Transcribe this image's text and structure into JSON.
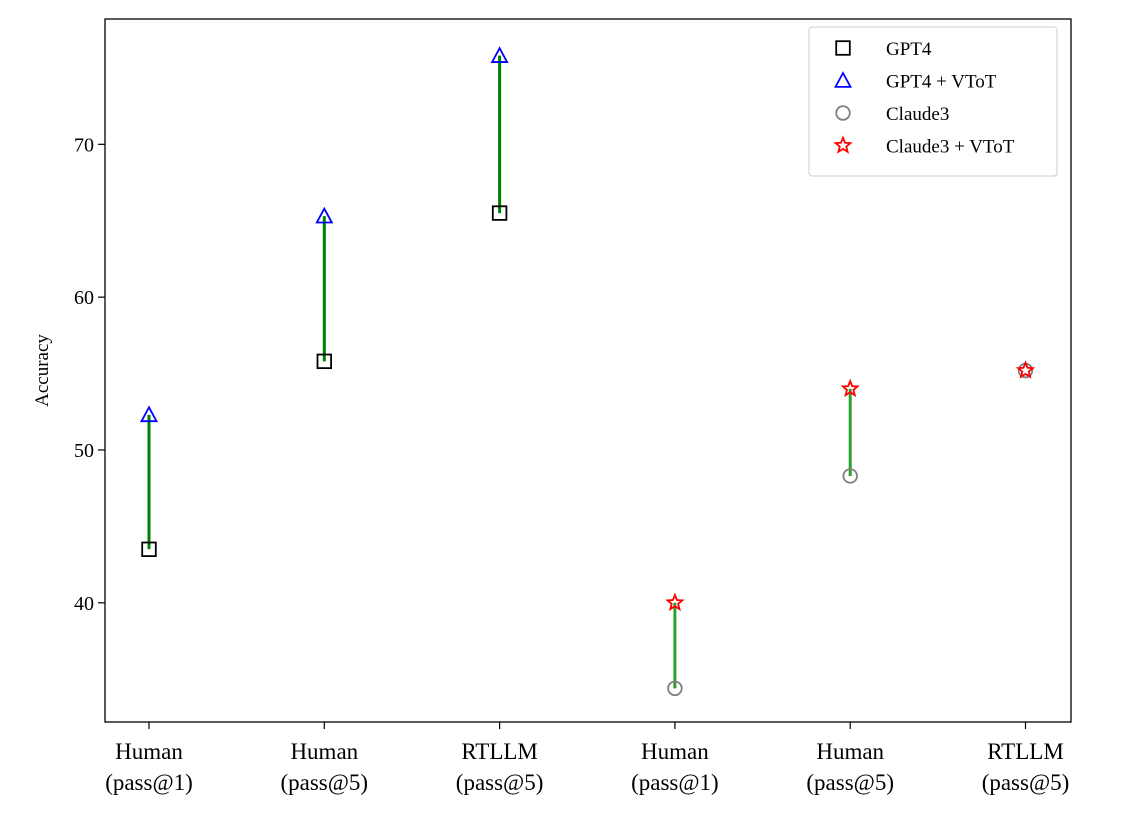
{
  "chart_data": {
    "type": "scatter",
    "ylabel": "Accuracy",
    "xlabel": "",
    "ylim": [
      32.2,
      78.2
    ],
    "yticks": [
      40,
      50,
      60,
      70
    ],
    "categories": [
      {
        "line1": "Human",
        "line2": "(pass@1)"
      },
      {
        "line1": "Human",
        "line2": "(pass@5)"
      },
      {
        "line1": "RTLLM",
        "line2": "(pass@5)"
      },
      {
        "line1": "Human",
        "line2": "(pass@1)"
      },
      {
        "line1": "Human",
        "line2": "(pass@5)"
      },
      {
        "line1": "RTLLM",
        "line2": "(pass@5)"
      }
    ],
    "series": [
      {
        "name": "GPT4",
        "marker": "square",
        "color": "#000000",
        "points": [
          {
            "x": 0,
            "y": 43.5
          },
          {
            "x": 1,
            "y": 55.8
          },
          {
            "x": 2,
            "y": 65.5
          }
        ]
      },
      {
        "name": "GPT4 + VToT",
        "marker": "triangle",
        "color": "#0000ff",
        "points": [
          {
            "x": 0,
            "y": 52.3
          },
          {
            "x": 1,
            "y": 65.3
          },
          {
            "x": 2,
            "y": 75.8
          }
        ]
      },
      {
        "name": "Claude3",
        "marker": "circle",
        "color": "#808080",
        "points": [
          {
            "x": 3,
            "y": 34.4
          },
          {
            "x": 4,
            "y": 48.3
          },
          {
            "x": 5,
            "y": 55.2
          }
        ]
      },
      {
        "name": "Claude3 + VToT",
        "marker": "star",
        "color": "#ff0000",
        "points": [
          {
            "x": 3,
            "y": 40.0
          },
          {
            "x": 4,
            "y": 54.0
          },
          {
            "x": 5,
            "y": 55.2
          }
        ]
      }
    ],
    "connectors": [
      {
        "x": 0,
        "from": 43.5,
        "to": 52.3,
        "color": "#008000"
      },
      {
        "x": 1,
        "from": 55.8,
        "to": 65.3,
        "color": "#008000"
      },
      {
        "x": 2,
        "from": 65.5,
        "to": 75.8,
        "color": "#008000"
      },
      {
        "x": 3,
        "from": 34.4,
        "to": 40.0,
        "color": "#2ca02c"
      },
      {
        "x": 4,
        "from": 48.3,
        "to": 54.0,
        "color": "#2ca02c"
      }
    ],
    "legend_position": "top-right",
    "grid": false
  }
}
